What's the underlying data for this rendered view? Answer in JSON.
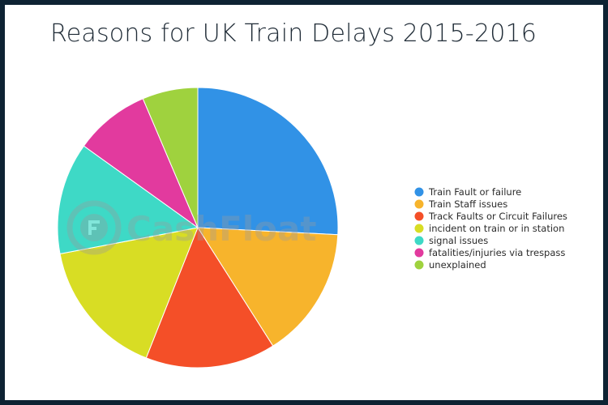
{
  "chart_data": {
    "type": "pie",
    "title": "Reasons for UK Train Delays 2015-2016",
    "legend_position": "right",
    "categories": [
      "Train Fault or failure",
      "Train Staff issues",
      "Track Faults or Circuit Failures",
      "incident on train or in station",
      "signal issues",
      "fatalities/injuries via trespass",
      "unexplained"
    ],
    "values": [
      25.8,
      15.2,
      15.0,
      16.0,
      12.9,
      8.7,
      6.4
    ],
    "colors": [
      "#3192e6",
      "#f7b42c",
      "#f44f28",
      "#d8dd24",
      "#3ed9c6",
      "#e23a9e",
      "#9fd23e"
    ]
  },
  "watermark": {
    "text": "CashFloat",
    "icon": "cashfloat-logo-icon"
  }
}
